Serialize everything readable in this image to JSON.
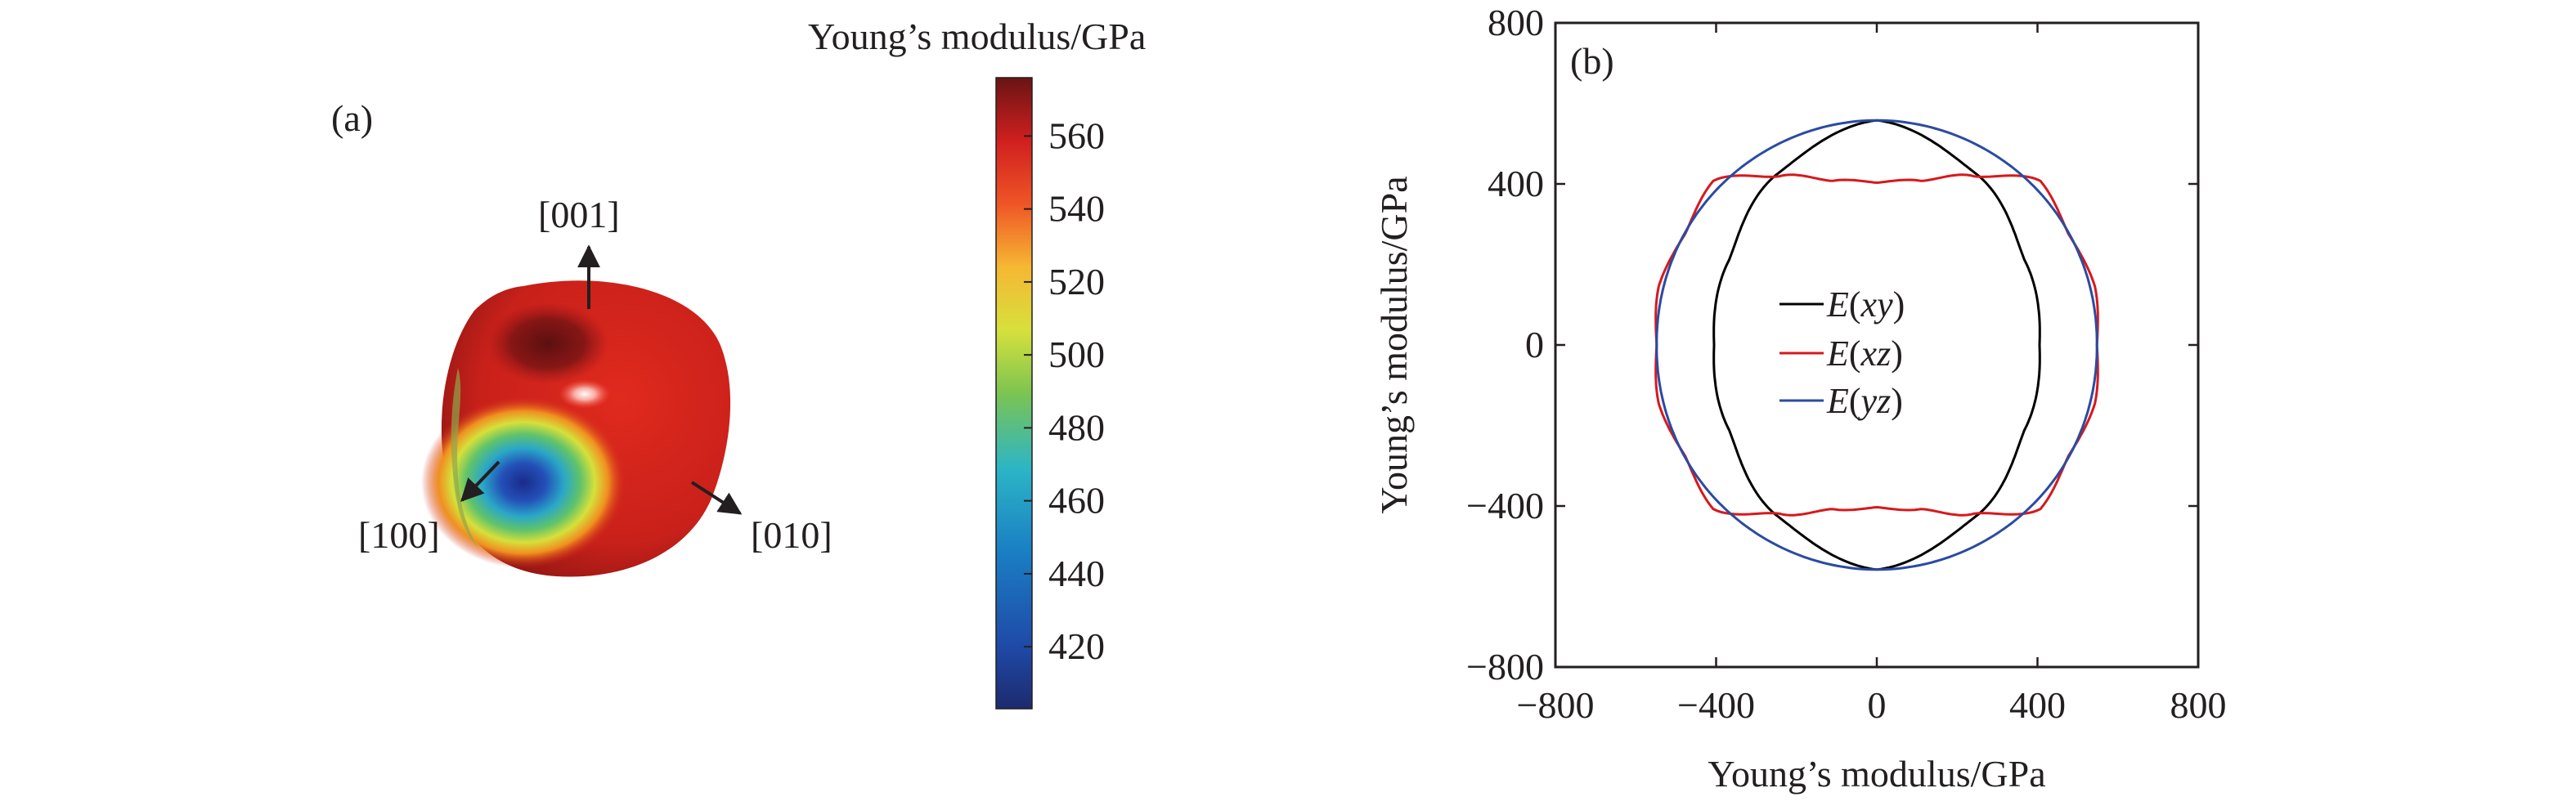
{
  "panel_a": {
    "label": "(a)",
    "direction_labels": {
      "z": "[001]",
      "x": "[100]",
      "y": "[010]"
    },
    "colorbar": {
      "title": "Young’s modulus/GPa",
      "ticks": [
        420,
        440,
        460,
        480,
        500,
        520,
        540,
        560
      ],
      "min": 403,
      "max": 576,
      "colors": {
        "low": "#1e2a78",
        "mid": "#c8e03c",
        "high": "#6a1414"
      }
    }
  },
  "chart_data": {
    "type": "line",
    "panel_label": "(b)",
    "xlabel": "Young’s modulus/GPa",
    "ylabel": "Young’s modulus/GPa",
    "xlim": [
      -800,
      800
    ],
    "ylim": [
      -800,
      800
    ],
    "xticks": [
      "−800",
      "−400",
      "0",
      "400",
      "800"
    ],
    "yticks": [
      "−800",
      "−400",
      "0",
      "400",
      "800"
    ],
    "tick_values": [
      -800,
      -400,
      0,
      400,
      800
    ],
    "legend": {
      "placement": "center"
    },
    "series": [
      {
        "name_prefix": "E(",
        "name_var": "xy",
        "name_suffix": ")",
        "color": "#000000",
        "values": {
          "angle_deg": [
            0,
            30,
            60,
            90,
            120,
            150,
            180,
            210,
            240,
            270,
            300,
            330
          ],
          "radius": [
            405,
            424,
            492,
            558,
            492,
            424,
            405,
            424,
            492,
            558,
            492,
            424
          ]
        }
      },
      {
        "name_prefix": "E(",
        "name_var": "xz",
        "name_suffix": ")",
        "color": "#d7191c",
        "values": {
          "angle_deg": [
            0,
            15,
            30,
            45,
            60,
            75,
            90
          ],
          "radius": [
            548,
            562,
            551,
            576,
            484,
            422,
            403
          ],
          "symmetry": "mirrored into all four quadrants"
        }
      },
      {
        "name_prefix": "E(",
        "name_var": "yz",
        "name_suffix": ")",
        "color": "#2b4ba1",
        "values": {
          "angle_deg": [
            0,
            45,
            90,
            135,
            180,
            225,
            270,
            315
          ],
          "radius": [
            548,
            555,
            558,
            555,
            548,
            555,
            558,
            555
          ]
        }
      }
    ]
  }
}
